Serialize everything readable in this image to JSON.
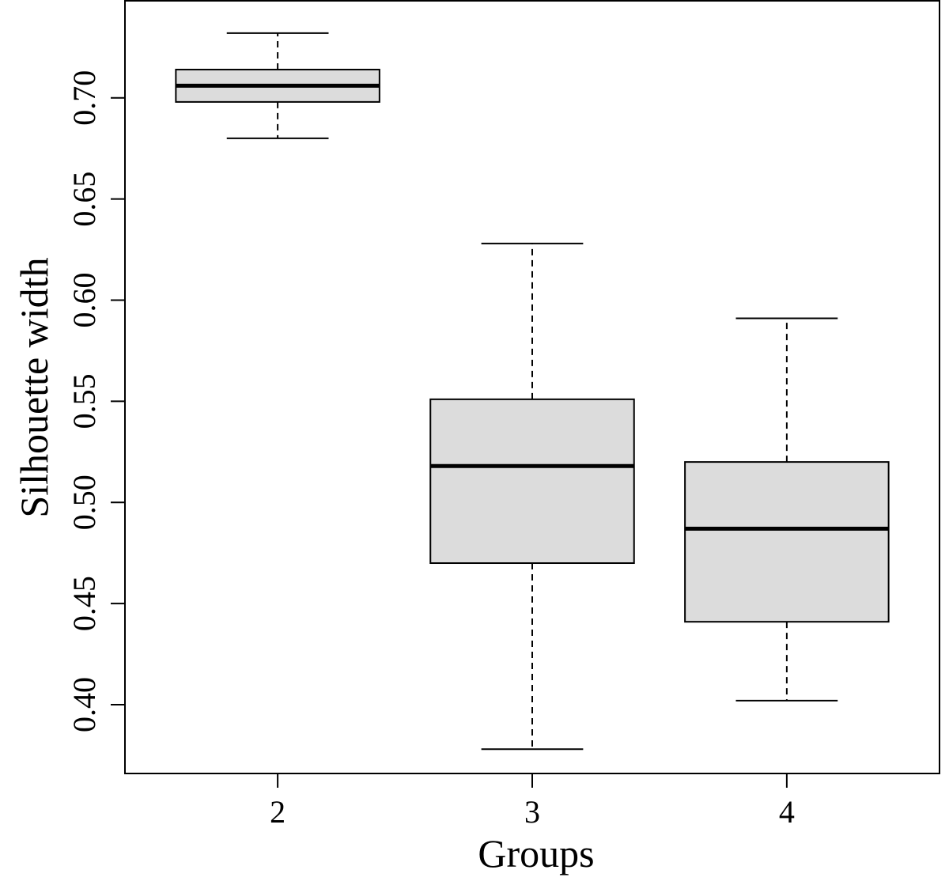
{
  "chart_data": {
    "type": "boxplot",
    "title": "",
    "xlabel": "Groups",
    "ylabel": "Silhouette width",
    "categories": [
      "2",
      "3",
      "4"
    ],
    "boxes": [
      {
        "category": "2",
        "whisker_low": 0.68,
        "q1": 0.698,
        "median": 0.706,
        "q3": 0.714,
        "whisker_high": 0.732
      },
      {
        "category": "3",
        "whisker_low": 0.378,
        "q1": 0.47,
        "median": 0.518,
        "q3": 0.551,
        "whisker_high": 0.628
      },
      {
        "category": "4",
        "whisker_low": 0.402,
        "q1": 0.441,
        "median": 0.487,
        "q3": 0.52,
        "whisker_high": 0.591
      }
    ],
    "yticks": [
      0.4,
      0.45,
      0.5,
      0.55,
      0.6,
      0.65,
      0.7
    ],
    "ytick_labels": [
      "0.40",
      "0.45",
      "0.50",
      "0.55",
      "0.60",
      "0.65",
      "0.70"
    ],
    "ylim": [
      0.366,
      0.748
    ],
    "grid": false,
    "legend": "none",
    "box_fill": "#dcdcdc",
    "line_color": "#000000"
  }
}
